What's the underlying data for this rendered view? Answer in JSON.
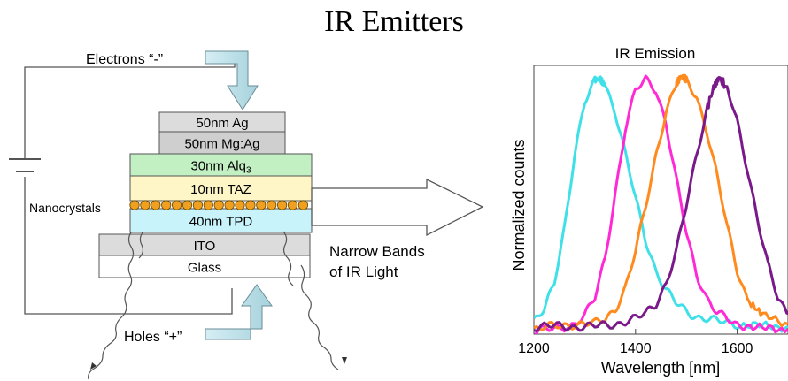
{
  "title": "IR Emitters",
  "device": {
    "electrons_label": "Electrons “-”",
    "holes_label": "Holes “+”",
    "nanocrystals_label": "Nanocrystals",
    "output_label_line1": "Narrow Bands",
    "output_label_line2": "of IR Light",
    "layers": [
      {
        "label": "50nm Ag",
        "color": "#dcdcdc"
      },
      {
        "label": "50nm Mg:Ag",
        "color": "#cfcfcf"
      },
      {
        "label": "30nm Alq",
        "subscript": "3",
        "color": "#c3f0c3"
      },
      {
        "label": "10nm TAZ",
        "color": "#fff6c8"
      },
      {
        "label": "40nm TPD",
        "color": "#c9f3fb"
      },
      {
        "label": "ITO",
        "color": "#dcdcdc"
      },
      {
        "label": "Glass",
        "color": "#ffffff"
      }
    ],
    "nanocrystal_color": "#f0a020"
  },
  "chart_data": {
    "type": "line",
    "title": "IR Emission",
    "xlabel": "Wavelength [nm]",
    "ylabel": "Normalized counts",
    "xlim": [
      1200,
      1700
    ],
    "ylim": [
      0,
      1.05
    ],
    "xticks": [
      1200,
      1400,
      1600
    ],
    "grid": false,
    "series": [
      {
        "color": "#3fe0e8",
        "peak": 1325,
        "values": [
          [
            1200,
            0.05
          ],
          [
            1220,
            0.09
          ],
          [
            1240,
            0.2
          ],
          [
            1260,
            0.42
          ],
          [
            1280,
            0.7
          ],
          [
            1300,
            0.9
          ],
          [
            1320,
            0.99
          ],
          [
            1330,
            1.0
          ],
          [
            1340,
            0.98
          ],
          [
            1360,
            0.87
          ],
          [
            1380,
            0.7
          ],
          [
            1400,
            0.53
          ],
          [
            1420,
            0.37
          ],
          [
            1440,
            0.25
          ],
          [
            1460,
            0.17
          ],
          [
            1480,
            0.12
          ],
          [
            1500,
            0.09
          ],
          [
            1520,
            0.07
          ],
          [
            1560,
            0.05
          ],
          [
            1600,
            0.04
          ],
          [
            1650,
            0.03
          ],
          [
            1700,
            0.03
          ]
        ]
      },
      {
        "color": "#ff2ad6",
        "peak": 1420,
        "values": [
          [
            1200,
            0.01
          ],
          [
            1240,
            0.02
          ],
          [
            1280,
            0.04
          ],
          [
            1300,
            0.07
          ],
          [
            1320,
            0.14
          ],
          [
            1340,
            0.3
          ],
          [
            1360,
            0.55
          ],
          [
            1380,
            0.8
          ],
          [
            1400,
            0.95
          ],
          [
            1420,
            1.0
          ],
          [
            1440,
            0.96
          ],
          [
            1460,
            0.82
          ],
          [
            1480,
            0.6
          ],
          [
            1500,
            0.4
          ],
          [
            1520,
            0.24
          ],
          [
            1540,
            0.14
          ],
          [
            1560,
            0.08
          ],
          [
            1600,
            0.04
          ],
          [
            1650,
            0.02
          ],
          [
            1700,
            0.02
          ]
        ]
      },
      {
        "color": "#ff8a1e",
        "peak": 1490,
        "values": [
          [
            1200,
            0.02
          ],
          [
            1240,
            0.03
          ],
          [
            1280,
            0.04
          ],
          [
            1320,
            0.04
          ],
          [
            1340,
            0.06
          ],
          [
            1360,
            0.1
          ],
          [
            1380,
            0.18
          ],
          [
            1400,
            0.32
          ],
          [
            1420,
            0.5
          ],
          [
            1440,
            0.7
          ],
          [
            1460,
            0.87
          ],
          [
            1480,
            0.97
          ],
          [
            1490,
            1.0
          ],
          [
            1500,
            0.99
          ],
          [
            1520,
            0.93
          ],
          [
            1540,
            0.8
          ],
          [
            1560,
            0.62
          ],
          [
            1580,
            0.42
          ],
          [
            1600,
            0.25
          ],
          [
            1620,
            0.14
          ],
          [
            1650,
            0.07
          ],
          [
            1700,
            0.04
          ]
        ]
      },
      {
        "color": "#7a1a8a",
        "peak": 1560,
        "values": [
          [
            1200,
            0.03
          ],
          [
            1240,
            0.03
          ],
          [
            1280,
            0.03
          ],
          [
            1320,
            0.03
          ],
          [
            1360,
            0.04
          ],
          [
            1400,
            0.06
          ],
          [
            1420,
            0.08
          ],
          [
            1440,
            0.12
          ],
          [
            1460,
            0.2
          ],
          [
            1480,
            0.32
          ],
          [
            1500,
            0.5
          ],
          [
            1520,
            0.7
          ],
          [
            1540,
            0.88
          ],
          [
            1555,
            0.97
          ],
          [
            1565,
            1.0
          ],
          [
            1580,
            0.96
          ],
          [
            1600,
            0.83
          ],
          [
            1620,
            0.65
          ],
          [
            1640,
            0.45
          ],
          [
            1660,
            0.27
          ],
          [
            1680,
            0.14
          ],
          [
            1700,
            0.08
          ]
        ]
      }
    ]
  }
}
